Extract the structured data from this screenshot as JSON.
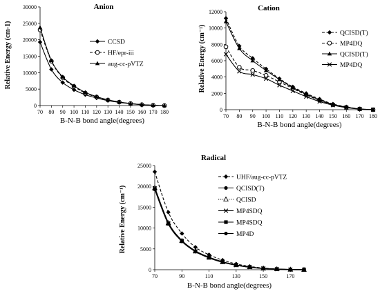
{
  "chart_data": [
    {
      "type": "line",
      "title": "Anion",
      "xlabel": "B-N-B bond angle(degrees)",
      "ylabel": "Relative Energy (cm-1)",
      "x": [
        70,
        80,
        90,
        100,
        110,
        120,
        130,
        140,
        150,
        160,
        170,
        180
      ],
      "xlim": [
        70,
        180
      ],
      "ylim": [
        0,
        30000
      ],
      "yticks": [
        0,
        5000,
        10000,
        15000,
        20000,
        25000,
        30000
      ],
      "legend_position": "right",
      "series": [
        {
          "name": "CCSD",
          "style": "solid",
          "marker": "diamond",
          "values": [
            19300,
            11000,
            7000,
            4800,
            3300,
            2300,
            1500,
            950,
            550,
            250,
            80,
            0
          ]
        },
        {
          "name": "HF/epr-iii",
          "style": "dashed",
          "marker": "open-circle",
          "values": [
            23000,
            13500,
            8500,
            5800,
            3800,
            2600,
            1700,
            1050,
            600,
            280,
            90,
            0
          ]
        },
        {
          "name": "aug-cc-pVTZ",
          "style": "solid",
          "marker": "triangle",
          "values": [
            23700,
            13700,
            8700,
            6000,
            4000,
            2700,
            1750,
            1100,
            620,
            290,
            90,
            0
          ]
        }
      ]
    },
    {
      "type": "line",
      "title": "Cation",
      "xlabel": "B-N-B bond angle(degrees)",
      "ylabel": "Relative Energy (cm⁻¹)",
      "x": [
        70,
        80,
        90,
        100,
        110,
        120,
        130,
        140,
        150,
        160,
        170,
        180
      ],
      "xlim": [
        70,
        180
      ],
      "ylim": [
        0,
        12000
      ],
      "yticks": [
        0,
        2000,
        4000,
        6000,
        8000,
        10000,
        12000
      ],
      "legend_position": "top-right",
      "series": [
        {
          "name": "QCISD(T)",
          "style": "dashed",
          "marker": "diamond",
          "values": [
            11200,
            7800,
            6300,
            5000,
            3800,
            2800,
            2000,
            1300,
            700,
            350,
            100,
            0
          ]
        },
        {
          "name": "MP4DQ",
          "style": "dashed",
          "marker": "open-circle",
          "values": [
            7700,
            5200,
            4800,
            4200,
            3400,
            2600,
            1800,
            1150,
            600,
            300,
            90,
            0
          ]
        },
        {
          "name": "QCISD(T)",
          "style": "solid",
          "marker": "triangle",
          "values": [
            10800,
            7500,
            6000,
            4800,
            3700,
            2700,
            1900,
            1200,
            650,
            320,
            90,
            0
          ]
        },
        {
          "name": "MP4DQ",
          "style": "solid",
          "marker": "cross",
          "values": [
            6800,
            4700,
            4300,
            3800,
            3000,
            2300,
            1600,
            1000,
            550,
            250,
            80,
            0
          ]
        }
      ]
    },
    {
      "type": "line",
      "title": "Radical",
      "xlabel": "B-N-B bond angle(degrees)",
      "ylabel": "Relative Energy (cm⁻¹)",
      "x": [
        70,
        80,
        90,
        100,
        110,
        120,
        130,
        140,
        150,
        160,
        170,
        180
      ],
      "xlim": [
        70,
        180
      ],
      "ylim": [
        0,
        25000
      ],
      "xticks": [
        70,
        90,
        110,
        130,
        150,
        170
      ],
      "yticks": [
        0,
        5000,
        10000,
        15000,
        20000,
        25000
      ],
      "legend_position": "top-right",
      "series": [
        {
          "name": "UHF/aug-cc-pVTZ",
          "style": "dashed",
          "marker": "diamond",
          "values": [
            23500,
            13800,
            8700,
            5400,
            3600,
            2300,
            1400,
            800,
            400,
            180,
            50,
            0
          ]
        },
        {
          "name": "QCISD(T)",
          "style": "solid",
          "marker": "dot",
          "values": [
            19700,
            11300,
            7000,
            4500,
            3000,
            1900,
            1150,
            650,
            320,
            150,
            40,
            0
          ]
        },
        {
          "name": "QCISD",
          "style": "dotted",
          "marker": "open-triangle",
          "values": [
            19600,
            11200,
            6950,
            4450,
            2950,
            1850,
            1120,
            630,
            310,
            140,
            40,
            0
          ]
        },
        {
          "name": "MP4SDQ",
          "style": "solid",
          "marker": "cross",
          "values": [
            19500,
            11100,
            6900,
            4400,
            2900,
            1830,
            1100,
            620,
            300,
            140,
            40,
            0
          ]
        },
        {
          "name": "MP4SDQ",
          "style": "solid",
          "marker": "square",
          "values": [
            19400,
            11050,
            6850,
            4380,
            2880,
            1820,
            1090,
            610,
            300,
            140,
            40,
            0
          ]
        },
        {
          "name": "MP4D",
          "style": "solid",
          "marker": "dot",
          "values": [
            19300,
            11000,
            6800,
            4350,
            2850,
            1800,
            1080,
            600,
            290,
            130,
            40,
            0
          ]
        }
      ]
    }
  ]
}
